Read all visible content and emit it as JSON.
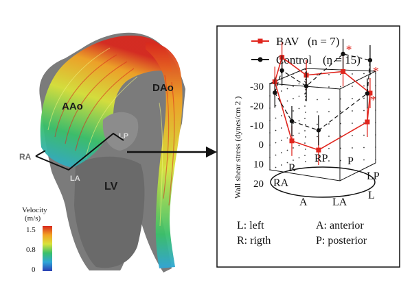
{
  "left_figure": {
    "anatomy_labels": {
      "aao": "AAo",
      "dao": "DAo",
      "lv": "LV",
      "ra": "RA",
      "la": "LA",
      "lp": "LP"
    },
    "colorbar": {
      "title_line1": "Velocity",
      "title_line2": "(m/s)",
      "tick_max": "1.5",
      "tick_mid": "0.8",
      "tick_min": "0",
      "stops": [
        "#2b3fb3",
        "#2fa6d8",
        "#39c06a",
        "#d8e23a",
        "#f2a224",
        "#d8281e"
      ]
    },
    "colors": {
      "tissue": "#7b7b7b",
      "tissue_dark": "#5a5a5a"
    }
  },
  "right_panel": {
    "legend": {
      "bav_name": "BAV",
      "bav_n": "(n = 7)",
      "control_name": "Control",
      "control_n": "(n = 15)"
    },
    "axis": {
      "ylabel": "Wall shear stress (dynes/cm 2 )",
      "ticks": [
        "-30",
        "-20",
        "-10",
        "0",
        "10",
        "20"
      ]
    },
    "positions": [
      "RA",
      "R",
      "RP",
      "P",
      "LP",
      "L",
      "LA",
      "A"
    ],
    "footer": {
      "l_def": "L: left",
      "r_def": "R: rigth",
      "a_def": "A: anterior",
      "p_def": "P: posterior"
    },
    "significance_marker": "*",
    "colors": {
      "bav": "#e0261e",
      "control": "#111111"
    }
  },
  "chart_data": {
    "type": "line",
    "ylabel": "Wall shear stress (dynes/cm 2 )",
    "ylim": [
      -30,
      20
    ],
    "y_inverted": true,
    "categories": [
      "RA",
      "R",
      "RP",
      "P",
      "LP",
      "L",
      "LA",
      "A"
    ],
    "series": [
      {
        "name": "BAV (n = 7)",
        "values": [
          -15,
          -22,
          -10,
          -12,
          -9,
          -1,
          6,
          4
        ],
        "significant": [
          false,
          false,
          false,
          true,
          true,
          true,
          false,
          false
        ]
      },
      {
        "name": "Control (n = 15)",
        "values": [
          -10,
          -16,
          -5,
          -20,
          -24,
          -14,
          -3,
          -5
        ],
        "significant": [
          false,
          false,
          false,
          false,
          false,
          false,
          false,
          false
        ]
      }
    ]
  }
}
